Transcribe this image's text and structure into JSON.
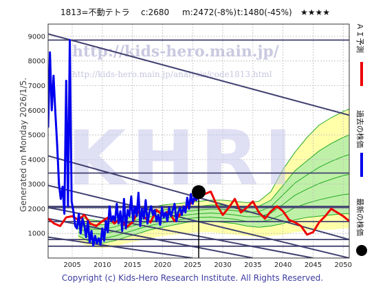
{
  "header": {
    "title": "1813=不動テトラ",
    "current": "c:2680",
    "medium": "m:2472(-8%)",
    "target": "t:1480(-45%)",
    "stars": "★★★★"
  },
  "side_text": {
    "generated": "Generated on Monday 2026/1/5.",
    "legend_ai": "ＡＩ予測",
    "legend_past": "過去の株価",
    "legend_latest": "最新の株価"
  },
  "colors": {
    "background": "#ffffff",
    "past_price": "#0000ee",
    "ai_forecast": "#ee0000",
    "latest_marker": "#000000",
    "band_light": "#ffffaa",
    "band_green": "#bff0a8",
    "band_mid": "#9fe08a",
    "band_lines": "#22aa22",
    "trend_lines": "#404070",
    "watermark": "#c8c8ec",
    "copyright": "#3a3aa0"
  },
  "watermark": {
    "url": "http://kids-hero.main.jp/",
    "path": "http://kids-hero.main.jp/analysis/code1813.html",
    "logo": "KHRI"
  },
  "copyright": "Copyright (c) Kids-Hero Research Institute. All Rights Reserved.",
  "chart_data": {
    "type": "line",
    "xlim": [
      2001,
      2051
    ],
    "ylim": [
      0,
      9500
    ],
    "x_ticks": [
      2005,
      2010,
      2015,
      2020,
      2025,
      2030,
      2035,
      2040,
      2045,
      2050
    ],
    "y_ticks": [
      1000,
      2000,
      3000,
      4000,
      5000,
      6000,
      7000,
      8000,
      9000
    ],
    "grid": true,
    "legend_position": "right-vertical",
    "current_point": {
      "x": 2026.0,
      "y": 2680
    },
    "current_vline_x": 2026.0,
    "horizontal_levels": [
      8850,
      3450,
      2100,
      2050,
      1480,
      750,
      480
    ],
    "trend_lines": [
      {
        "x": [
          2001,
          2051
        ],
        "y": [
          9100,
          5800
        ]
      },
      {
        "x": [
          2001,
          2051
        ],
        "y": [
          4150,
          750
        ]
      },
      {
        "x": [
          2001,
          2051
        ],
        "y": [
          2950,
          0
        ]
      },
      {
        "x": [
          2001,
          2045
        ],
        "y": [
          2050,
          0
        ]
      },
      {
        "x": [
          2001,
          2035
        ],
        "y": [
          1600,
          0
        ]
      },
      {
        "x": [
          2001,
          2025
        ],
        "y": [
          850,
          0
        ]
      }
    ],
    "band_x": [
      2006,
      2008,
      2010,
      2012,
      2014,
      2016,
      2018,
      2020,
      2022,
      2024,
      2026,
      2028,
      2030,
      2032,
      2034,
      2036,
      2038,
      2040,
      2042,
      2044,
      2046,
      2048,
      2050,
      2051
    ],
    "band_outer_upper": [
      1700,
      1550,
      1500,
      1600,
      1750,
      1900,
      2050,
      2150,
      2200,
      2250,
      2300,
      2350,
      2350,
      2300,
      2250,
      2300,
      2700,
      3600,
      4300,
      4900,
      5400,
      5700,
      5950,
      6050
    ],
    "band_upper": [
      1500,
      1350,
      1350,
      1450,
      1600,
      1750,
      1850,
      1950,
      2000,
      2050,
      2100,
      2150,
      2150,
      2100,
      2050,
      2100,
      2350,
      2950,
      3550,
      3950,
      4350,
      4650,
      4900,
      5000
    ],
    "band_lower": [
      900,
      650,
      600,
      700,
      850,
      1000,
      1150,
      1250,
      1350,
      1450,
      1500,
      1500,
      1450,
      1400,
      1300,
      1250,
      1300,
      1400,
      1550,
      1650,
      1700,
      1750,
      1800,
      1800
    ],
    "band_outer_lower": [
      650,
      450,
      400,
      450,
      600,
      700,
      800,
      900,
      950,
      1000,
      1050,
      1050,
      1000,
      950,
      900,
      850,
      900,
      950,
      1050,
      1100,
      1150,
      1150,
      1200,
      1200
    ],
    "series": [
      {
        "name": "ＡＩ予測",
        "color": "#ee0000",
        "x": [
          2001,
          2002,
          2003,
          2004,
          2005,
          2006,
          2007,
          2008,
          2009,
          2010,
          2011,
          2012,
          2013,
          2014,
          2015,
          2016,
          2017,
          2018,
          2019,
          2020,
          2021,
          2022,
          2023,
          2024,
          2025,
          2026,
          2027,
          2028,
          2029,
          2030,
          2031,
          2032,
          2033,
          2034,
          2035,
          2036,
          2037,
          2038,
          2039,
          2040,
          2041,
          2042,
          2043,
          2044,
          2045,
          2046,
          2047,
          2048,
          2049,
          2050,
          2051
        ],
        "y": [
          1600,
          1400,
          1300,
          1650,
          1700,
          1550,
          1750,
          1400,
          1300,
          1500,
          1650,
          1400,
          1600,
          1250,
          1450,
          1900,
          1650,
          1450,
          1950,
          1750,
          1900,
          1500,
          1800,
          2050,
          2300,
          2450,
          2600,
          2700,
          2150,
          1750,
          2050,
          2400,
          1850,
          2050,
          2300,
          1850,
          1600,
          1900,
          2100,
          1900,
          1550,
          1450,
          1300,
          950,
          1050,
          1450,
          1700,
          2000,
          1850,
          1700,
          1500
        ]
      },
      {
        "name": "過去の株価",
        "color": "#0000ee",
        "x": [
          2001.0,
          2001.3,
          2001.6,
          2001.9,
          2002.2,
          2002.5,
          2002.8,
          2003.1,
          2003.4,
          2003.7,
          2004.0,
          2004.3,
          2004.6,
          2004.9,
          2005.2,
          2005.5,
          2005.8,
          2006.1,
          2006.4,
          2006.7,
          2007.0,
          2007.3,
          2007.6,
          2007.9,
          2008.2,
          2008.5,
          2008.8,
          2009.1,
          2009.4,
          2009.7,
          2010.0,
          2010.3,
          2010.6,
          2010.9,
          2011.2,
          2011.5,
          2011.8,
          2012.1,
          2012.4,
          2012.7,
          2013.0,
          2013.3,
          2013.6,
          2013.9,
          2014.2,
          2014.5,
          2014.8,
          2015.1,
          2015.4,
          2015.7,
          2016.0,
          2016.3,
          2016.6,
          2016.9,
          2017.2,
          2017.5,
          2017.8,
          2018.1,
          2018.4,
          2018.7,
          2019.0,
          2019.3,
          2019.6,
          2019.9,
          2020.2,
          2020.5,
          2020.8,
          2021.1,
          2021.4,
          2021.7,
          2022.0,
          2022.3,
          2022.6,
          2022.9,
          2023.2,
          2023.5,
          2023.8,
          2024.1,
          2024.4,
          2024.7,
          2025.0,
          2025.3,
          2025.6,
          2025.9
        ],
        "y": [
          5300,
          8350,
          6000,
          7400,
          5900,
          4600,
          3000,
          2400,
          2900,
          1800,
          7200,
          2100,
          8850,
          2300,
          1900,
          1300,
          1200,
          1800,
          1000,
          1600,
          1350,
          850,
          1500,
          650,
          1100,
          500,
          900,
          600,
          800,
          550,
          1200,
          700,
          1500,
          1050,
          2100,
          1500,
          1700,
          1500,
          2200,
          1400,
          1900,
          1100,
          2400,
          1200,
          1950,
          1700,
          2500,
          1500,
          2100,
          1700,
          2650,
          1300,
          2000,
          1600,
          2350,
          1400,
          1850,
          2100,
          1750,
          1950,
          1500,
          1750,
          1350,
          2050,
          1650,
          1850,
          1500,
          2050,
          1700,
          1950,
          2200,
          1500,
          1850,
          2050,
          1750,
          2100,
          1850,
          2450,
          2000,
          2600,
          2200,
          2500,
          2350,
          2550
        ]
      }
    ]
  }
}
